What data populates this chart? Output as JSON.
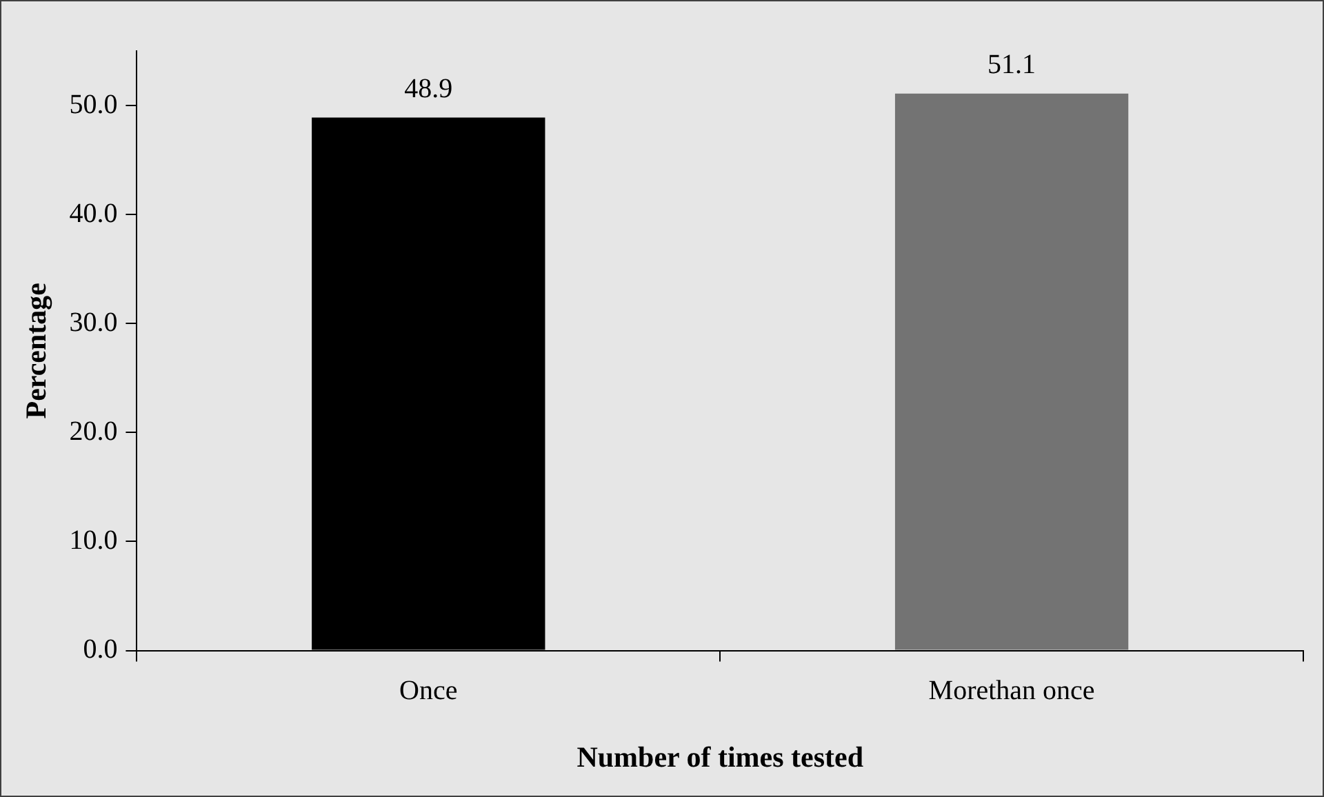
{
  "chart_data": {
    "type": "bar",
    "xlabel": "Number of times tested",
    "ylabel": "Percentage",
    "categories": [
      "Once",
      "Morethan once"
    ],
    "values": [
      48.9,
      51.1
    ],
    "colors": [
      "#000000",
      "#737373"
    ],
    "ylim": [
      0,
      55
    ],
    "yticks": [
      {
        "value": 0,
        "label": "0.0"
      },
      {
        "value": 10,
        "label": "10.0"
      },
      {
        "value": 20,
        "label": "20.0"
      },
      {
        "value": 30,
        "label": "30.0"
      },
      {
        "value": 40,
        "label": "40.0"
      },
      {
        "value": 50,
        "label": "50.0"
      }
    ],
    "data_labels": true,
    "grid": false,
    "legend": false
  }
}
